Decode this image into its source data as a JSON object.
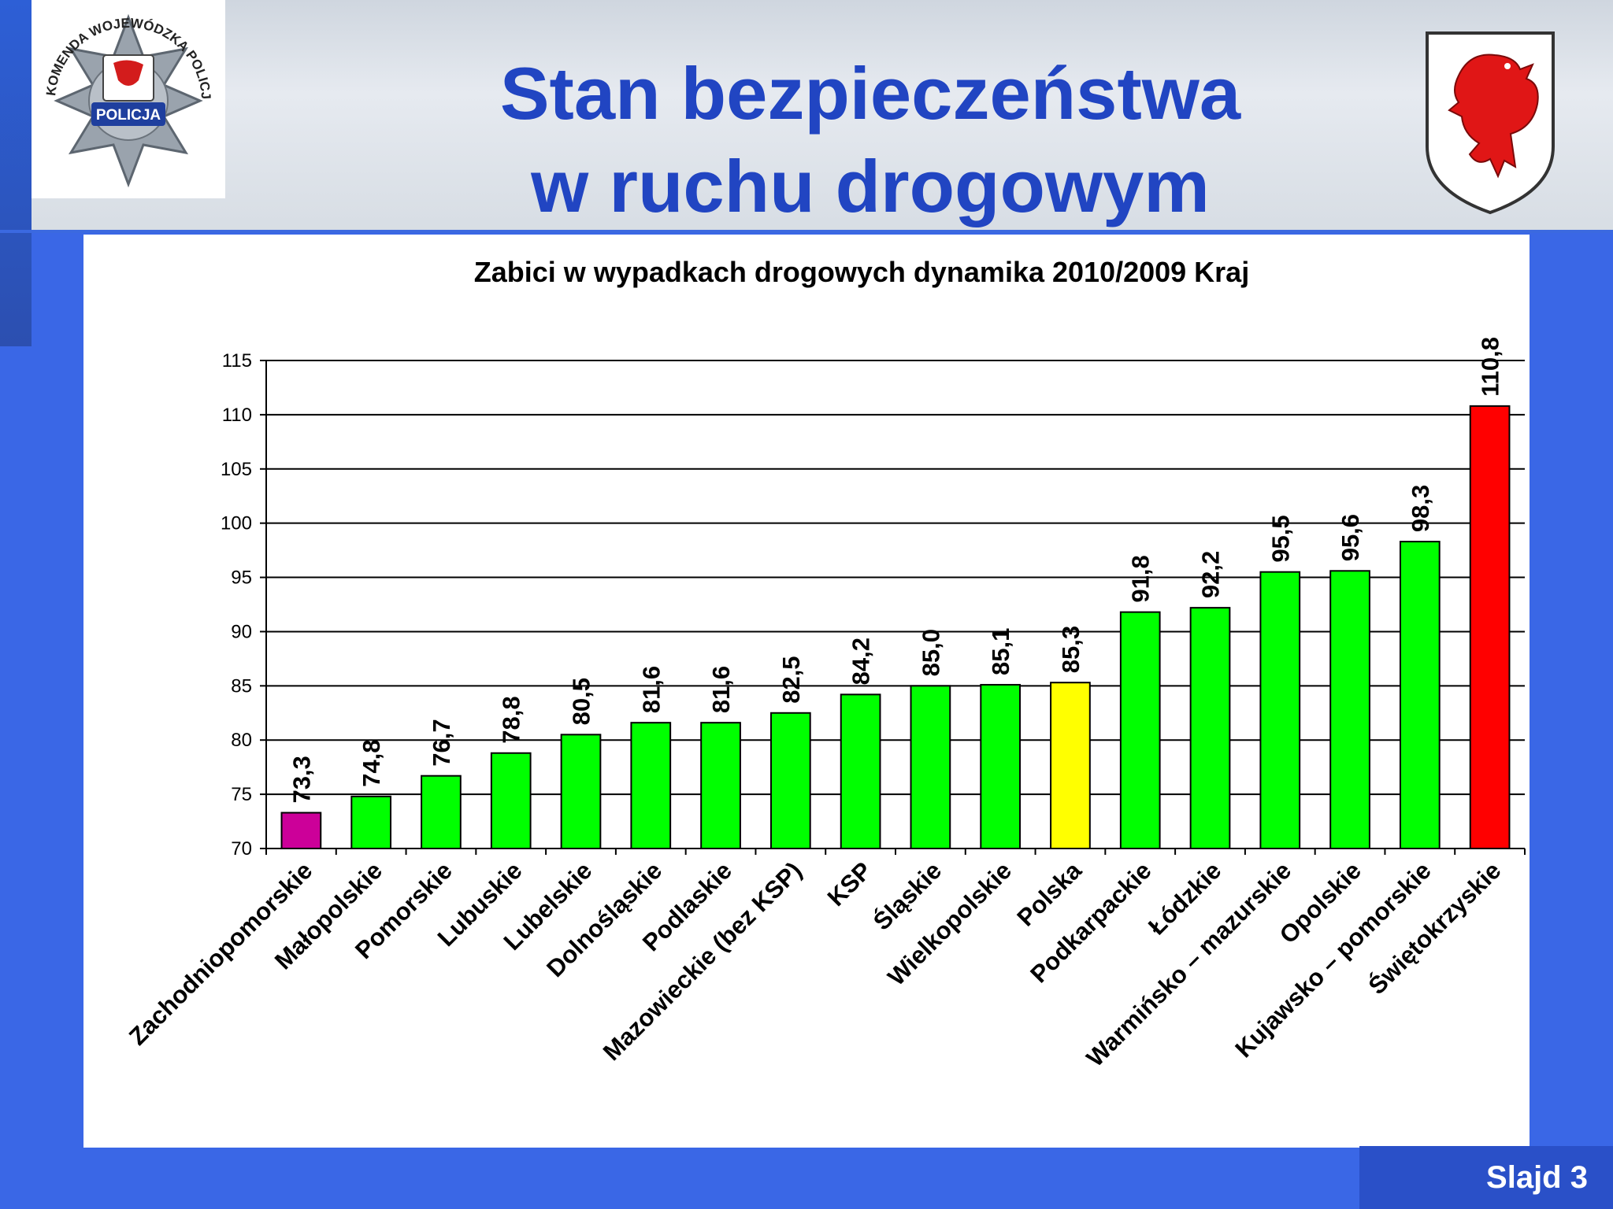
{
  "slide": {
    "title_line1": "Stan bezpieczeństwa",
    "title_line2": "w ruchu drogowym",
    "footer_label": "Slajd",
    "footer_number": "3"
  },
  "logos": {
    "police_badge_text": "KOMENDA WOJEWÓDZKA POLICJI W SZCZECINIE",
    "police_badge_label": "POLICJA"
  },
  "colors": {
    "title": "#2145c2",
    "bar_default": "#00ff00",
    "bar_first": "#cc0099",
    "bar_polska": "#ffff00",
    "bar_last": "#ff0000"
  },
  "chart_data": {
    "type": "bar",
    "title": "Zabici w wypadkach drogowych dynamika 2010/2009 Kraj",
    "xlabel": "",
    "ylabel": "",
    "ylim": [
      70,
      115
    ],
    "yticks": [
      70,
      75,
      80,
      85,
      90,
      95,
      100,
      105,
      110,
      115
    ],
    "grid": true,
    "legend": "none",
    "categories": [
      "Zachodniopomorskie",
      "Małopolskie",
      "Pomorskie",
      "Lubuskie",
      "Lubelskie",
      "Dolnośląskie",
      "Podlaskie",
      "Mazowieckie (bez KSP)",
      "KSP",
      "Śląskie",
      "Wielkopolskie",
      "Polska",
      "Podkarpackie",
      "Łódzkie",
      "Warmińsko – mazurskie",
      "Opolskie",
      "Kujawsko – pomorskie",
      "Świętokrzyskie"
    ],
    "values": [
      73.3,
      74.8,
      76.7,
      78.8,
      80.5,
      81.6,
      81.6,
      82.5,
      84.2,
      85.0,
      85.1,
      85.3,
      91.8,
      92.2,
      95.5,
      95.6,
      98.3,
      110.8
    ],
    "value_labels": [
      "73,3",
      "74,8",
      "76,7",
      "78,8",
      "80,5",
      "81,6",
      "81,6",
      "82,5",
      "84,2",
      "85,0",
      "85,1",
      "85,3",
      "91,8",
      "92,2",
      "95,5",
      "95,6",
      "98,3",
      "110,8"
    ],
    "bar_colors": [
      "#cc0099",
      "#00ff00",
      "#00ff00",
      "#00ff00",
      "#00ff00",
      "#00ff00",
      "#00ff00",
      "#00ff00",
      "#00ff00",
      "#00ff00",
      "#00ff00",
      "#ffff00",
      "#00ff00",
      "#00ff00",
      "#00ff00",
      "#00ff00",
      "#00ff00",
      "#ff0000"
    ]
  }
}
